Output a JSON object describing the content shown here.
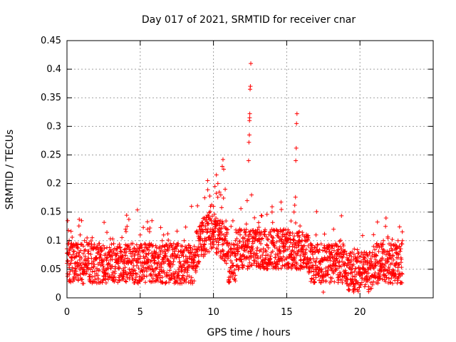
{
  "chart_data": {
    "type": "scatter",
    "title": "Day 017 of 2021, SRMTID for receiver cnar",
    "xlabel": "GPS time / hours",
    "ylabel": "SRMTID / TECUs",
    "xlim": [
      0,
      25
    ],
    "ylim": [
      0,
      0.45
    ],
    "xticks": [
      0,
      5,
      10,
      15,
      20
    ],
    "xtick_labels": [
      "0",
      "5",
      "10",
      "15",
      "20"
    ],
    "yticks": [
      0,
      0.05,
      0.1,
      0.15,
      0.2,
      0.25,
      0.3,
      0.35,
      0.4,
      0.45
    ],
    "ytick_labels": [
      "0",
      "0.05",
      "0.1",
      "0.15",
      "0.2",
      "0.25",
      "0.3",
      "0.35",
      "0.4",
      "0.45"
    ],
    "grid": true,
    "marker": "+",
    "color": "#ff0000",
    "series_name": "SRMTID",
    "approx_point_count": 2200,
    "data_range_hours": [
      0,
      22.9
    ],
    "points": [
      [
        0.0,
        0.078
      ],
      [
        0.05,
        0.135
      ],
      [
        0.1,
        0.118
      ],
      [
        0.15,
        0.1
      ],
      [
        0.2,
        0.085
      ],
      [
        0.25,
        0.06
      ],
      [
        0.3,
        0.07
      ],
      [
        0.5,
        0.045
      ],
      [
        0.7,
        0.09
      ],
      [
        0.9,
        0.11
      ],
      [
        1.0,
        0.135
      ],
      [
        1.2,
        0.1
      ],
      [
        1.5,
        0.06
      ],
      [
        2.0,
        0.07
      ],
      [
        2.5,
        0.05
      ],
      [
        3.0,
        0.055
      ],
      [
        3.5,
        0.06
      ],
      [
        4.0,
        0.12
      ],
      [
        4.1,
        0.125
      ],
      [
        4.5,
        0.05
      ],
      [
        5.0,
        0.11
      ],
      [
        5.5,
        0.12
      ],
      [
        5.8,
        0.135
      ],
      [
        6.0,
        0.07
      ],
      [
        6.5,
        0.1
      ],
      [
        6.6,
        0.11
      ],
      [
        7.0,
        0.06
      ],
      [
        7.5,
        0.09
      ],
      [
        8.0,
        0.1
      ],
      [
        8.5,
        0.16
      ],
      [
        9.0,
        0.1
      ],
      [
        9.2,
        0.13
      ],
      [
        9.4,
        0.175
      ],
      [
        9.6,
        0.205
      ],
      [
        9.8,
        0.16
      ],
      [
        10.0,
        0.16
      ],
      [
        10.1,
        0.195
      ],
      [
        10.2,
        0.215
      ],
      [
        10.3,
        0.2
      ],
      [
        10.4,
        0.185
      ],
      [
        10.5,
        0.18
      ],
      [
        10.6,
        0.23
      ],
      [
        10.65,
        0.242
      ],
      [
        10.7,
        0.225
      ],
      [
        10.8,
        0.19
      ],
      [
        10.9,
        0.12
      ],
      [
        11.0,
        0.08
      ],
      [
        11.2,
        0.125
      ],
      [
        11.5,
        0.1
      ],
      [
        11.7,
        0.05
      ],
      [
        12.0,
        0.09
      ],
      [
        12.2,
        0.11
      ],
      [
        12.3,
        0.17
      ],
      [
        12.4,
        0.24
      ],
      [
        12.42,
        0.272
      ],
      [
        12.45,
        0.285
      ],
      [
        12.46,
        0.31
      ],
      [
        12.47,
        0.315
      ],
      [
        12.48,
        0.322
      ],
      [
        12.5,
        0.365
      ],
      [
        12.52,
        0.37
      ],
      [
        12.55,
        0.41
      ],
      [
        12.6,
        0.18
      ],
      [
        12.8,
        0.14
      ],
      [
        13.0,
        0.1
      ],
      [
        13.5,
        0.11
      ],
      [
        14.0,
        0.15
      ],
      [
        14.5,
        0.1
      ],
      [
        14.8,
        0.12
      ],
      [
        15.0,
        0.07
      ],
      [
        15.4,
        0.09
      ],
      [
        15.5,
        0.15
      ],
      [
        15.55,
        0.162
      ],
      [
        15.6,
        0.176
      ],
      [
        15.62,
        0.24
      ],
      [
        15.65,
        0.262
      ],
      [
        15.67,
        0.305
      ],
      [
        15.7,
        0.322
      ],
      [
        15.8,
        0.1
      ],
      [
        16.0,
        0.08
      ],
      [
        16.5,
        0.06
      ],
      [
        17.0,
        0.11
      ],
      [
        17.5,
        0.01
      ],
      [
        18.0,
        0.07
      ],
      [
        18.2,
        0.12
      ],
      [
        18.5,
        0.09
      ],
      [
        19.0,
        0.06
      ],
      [
        19.5,
        0.03
      ],
      [
        20.0,
        0.045
      ],
      [
        20.3,
        0.08
      ],
      [
        20.5,
        0.065
      ],
      [
        21.0,
        0.04
      ],
      [
        21.5,
        0.06
      ],
      [
        21.6,
        0.1
      ],
      [
        22.0,
        0.05
      ],
      [
        22.4,
        0.09
      ],
      [
        22.6,
        0.1
      ],
      [
        22.8,
        0.07
      ],
      [
        22.9,
        0.1
      ]
    ]
  }
}
